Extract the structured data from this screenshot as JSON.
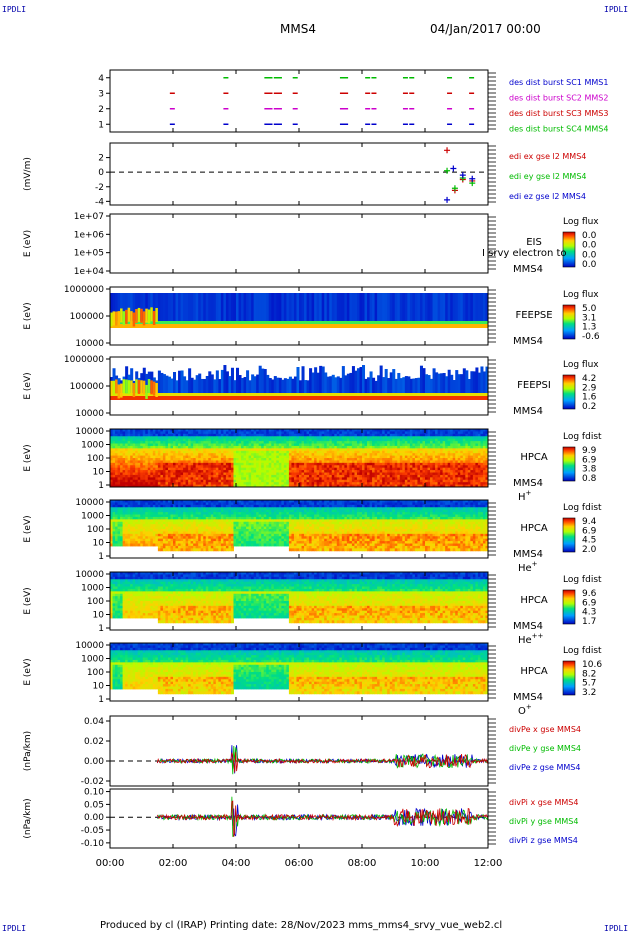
{
  "header": {
    "corner_label": "IPDLI",
    "spacecraft": "MMS4",
    "date_time": "04/Jan/2017 00:00"
  },
  "footer": {
    "text": "Produced by cl (IRAP)    Printing date: 28/Nov/2023    mms_mms4_srvy_vue_web2.cl"
  },
  "colors": {
    "mms1": "#0000cc",
    "mms2": "#cc00cc",
    "mms3": "#cc0000",
    "mms4": "#00bb00",
    "ex": "#cc0000",
    "ey": "#00bb00",
    "ez": "#0000cc"
  },
  "chart_data": {
    "type": "multi-panel time series",
    "x_ticks": [
      "00:00",
      "02:00",
      "04:00",
      "06:00",
      "08:00",
      "10:00",
      "12:00"
    ],
    "xlim": [
      0,
      12
    ],
    "panels": [
      {
        "id": "burst",
        "type": "scatter",
        "yticks": [
          "1",
          "2",
          "3",
          "4"
        ],
        "ylim": [
          0.5,
          4.5
        ],
        "ylabel": "",
        "legend": [
          "des dist burst SC1 MMS1",
          "des dist burst SC2 MMS2",
          "des dist burst SC3 MMS3",
          "des dist burst SC4 MMS4"
        ],
        "series": [
          {
            "name": "MMS1",
            "y": 1,
            "x": [
              1.9,
              3.6,
              4.9,
              5.0,
              5.2,
              5.3,
              5.8,
              7.3,
              7.4,
              8.1,
              8.3,
              9.3,
              9.5,
              10.7,
              11.4
            ]
          },
          {
            "name": "MMS2",
            "y": 2,
            "x": [
              1.9,
              3.6,
              4.9,
              5.0,
              5.2,
              5.3,
              5.8,
              7.3,
              7.4,
              8.1,
              8.3,
              9.3,
              9.5,
              10.7,
              11.4
            ]
          },
          {
            "name": "MMS3",
            "y": 3,
            "x": [
              1.9,
              3.6,
              4.9,
              5.0,
              5.2,
              5.3,
              5.8,
              7.3,
              7.4,
              8.1,
              8.3,
              9.3,
              9.5,
              10.7,
              11.4
            ]
          },
          {
            "name": "MMS4",
            "y": 4,
            "x": [
              3.6,
              4.9,
              5.0,
              5.2,
              5.3,
              5.8,
              7.3,
              7.4,
              8.1,
              8.3,
              9.3,
              9.5,
              10.7,
              11.4
            ]
          }
        ]
      },
      {
        "id": "edi",
        "type": "scatter",
        "yticks": [
          "-4",
          "-2",
          "0",
          "2"
        ],
        "ylim": [
          -4.5,
          4
        ],
        "ylabel": "(mV/m)",
        "legend": [
          "edi ex gse l2 MMS4",
          "edi ey gse l2 MMS4",
          "edi ez gse l2 MMS4"
        ],
        "series": [
          {
            "name": "ex",
            "points": [
              [
                10.7,
                3.0
              ],
              [
                10.95,
                -2.5
              ],
              [
                11.2,
                -1.0
              ],
              [
                11.5,
                -1.2
              ]
            ]
          },
          {
            "name": "ey",
            "points": [
              [
                10.7,
                0.2
              ],
              [
                10.95,
                -2.2
              ],
              [
                11.2,
                -0.8
              ],
              [
                11.5,
                -1.5
              ]
            ]
          },
          {
            "name": "ez",
            "points": [
              [
                10.7,
                -3.8
              ],
              [
                10.9,
                0.5
              ],
              [
                11.2,
                -0.4
              ],
              [
                11.5,
                -0.9
              ]
            ]
          }
        ]
      },
      {
        "id": "eis",
        "type": "heatmap",
        "yticks": [
          "1e+04",
          "1e+05",
          "1e+06",
          "1e+07"
        ],
        "ylabel": "E (eV)",
        "side_label": [
          "EIS",
          "MMS4"
        ],
        "overlay_label": "I srvy electron to",
        "cbar_title": "Log flux",
        "cbar_ticks": [
          "0.0",
          "0.0",
          "0.0",
          "0.0"
        ]
      },
      {
        "id": "feeps_e",
        "type": "heatmap",
        "yticks": [
          "10000",
          "100000",
          "1000000"
        ],
        "ylabel": "E (eV)",
        "side_label": [
          "FEEPSE",
          "MMS4"
        ],
        "cbar_title": "Log flux",
        "cbar_ticks": [
          "5.0",
          "3.1",
          "1.3",
          "-0.6"
        ]
      },
      {
        "id": "feeps_i",
        "type": "heatmap",
        "yticks": [
          "10000",
          "100000",
          "1000000"
        ],
        "ylabel": "E (eV)",
        "side_label": [
          "FEEPSI",
          "MMS4"
        ],
        "cbar_title": "Log flux",
        "cbar_ticks": [
          "4.2",
          "2.9",
          "1.6",
          "0.2"
        ]
      },
      {
        "id": "hpca_h",
        "type": "heatmap",
        "yticks": [
          "1",
          "10",
          "100",
          "1000",
          "10000"
        ],
        "ylabel": "E (eV)",
        "side_label": [
          "HPCA",
          "MMS4"
        ],
        "species": "H",
        "species_sup": "+",
        "cbar_title": "Log fdist",
        "cbar_ticks": [
          "9.9",
          "6.9",
          "3.8",
          "0.8"
        ]
      },
      {
        "id": "hpca_he",
        "type": "heatmap",
        "yticks": [
          "1",
          "10",
          "100",
          "1000",
          "10000"
        ],
        "ylabel": "E (eV)",
        "side_label": [
          "HPCA",
          "MMS4"
        ],
        "species": "He",
        "species_sup": "+",
        "cbar_title": "Log fdist",
        "cbar_ticks": [
          "9.4",
          "6.9",
          "4.5",
          "2.0"
        ]
      },
      {
        "id": "hpca_he2",
        "type": "heatmap",
        "yticks": [
          "1",
          "10",
          "100",
          "1000",
          "10000"
        ],
        "ylabel": "E (eV)",
        "side_label": [
          "HPCA",
          "MMS4"
        ],
        "species": "He",
        "species_sup": "++",
        "cbar_title": "Log fdist",
        "cbar_ticks": [
          "9.6",
          "6.9",
          "4.3",
          "1.7"
        ]
      },
      {
        "id": "hpca_o",
        "type": "heatmap",
        "yticks": [
          "1",
          "10",
          "100",
          "1000",
          "10000"
        ],
        "ylabel": "E (eV)",
        "side_label": [
          "HPCA",
          "MMS4"
        ],
        "species": "O",
        "species_sup": "+",
        "cbar_title": "Log fdist",
        "cbar_ticks": [
          "10.6",
          "8.2",
          "5.7",
          "3.2"
        ]
      },
      {
        "id": "divpe",
        "type": "line",
        "yticks": [
          "-0.02",
          "0.00",
          "0.02",
          "0.04"
        ],
        "ylim": [
          -0.025,
          0.045
        ],
        "ylabel": "(nPa/km)",
        "legend": [
          "divPe x gse MMS4",
          "divPe y gse MMS4",
          "divPe z gse MMS4"
        ]
      },
      {
        "id": "divpi",
        "type": "line",
        "yticks": [
          "-0.10",
          "-0.05",
          "0.00",
          "0.05",
          "0.10"
        ],
        "ylim": [
          -0.12,
          0.11
        ],
        "ylabel": "(nPa/km)",
        "legend": [
          "divPi x gse MMS4",
          "divPi y gse MMS4",
          "divPi z gse MMS4"
        ]
      }
    ]
  }
}
